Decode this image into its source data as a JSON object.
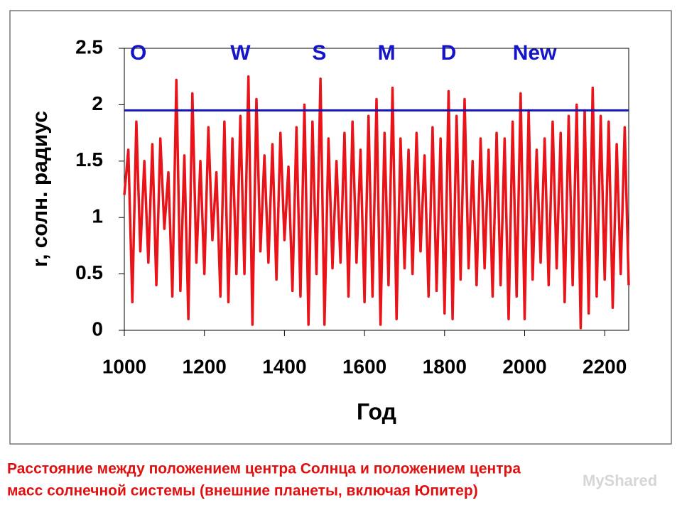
{
  "chart_data": {
    "type": "line",
    "xlabel": "Год",
    "ylabel": "r, солн. радиус",
    "xlim": [
      1000,
      2260
    ],
    "ylim": [
      0,
      2.5
    ],
    "xticks": [
      1000,
      1200,
      1400,
      1600,
      1800,
      2000,
      2200
    ],
    "yticks": [
      0,
      0.5,
      1,
      1.5,
      2,
      2.5
    ],
    "series": [
      {
        "color": "#e8141a",
        "x": [
          1000,
          1010,
          1020,
          1030,
          1040,
          1050,
          1060,
          1070,
          1080,
          1090,
          1100,
          1110,
          1120,
          1130,
          1140,
          1150,
          1160,
          1170,
          1180,
          1190,
          1200,
          1210,
          1220,
          1230,
          1240,
          1250,
          1260,
          1270,
          1280,
          1290,
          1300,
          1310,
          1320,
          1330,
          1340,
          1350,
          1360,
          1370,
          1380,
          1390,
          1400,
          1410,
          1420,
          1430,
          1440,
          1450,
          1460,
          1470,
          1480,
          1490,
          1500,
          1510,
          1520,
          1530,
          1540,
          1550,
          1560,
          1570,
          1580,
          1590,
          1600,
          1610,
          1620,
          1630,
          1640,
          1650,
          1660,
          1670,
          1680,
          1690,
          1700,
          1710,
          1720,
          1730,
          1740,
          1750,
          1760,
          1770,
          1780,
          1790,
          1800,
          1810,
          1820,
          1830,
          1840,
          1850,
          1860,
          1870,
          1880,
          1890,
          1900,
          1910,
          1920,
          1930,
          1940,
          1950,
          1960,
          1970,
          1980,
          1990,
          2000,
          2010,
          2020,
          2030,
          2040,
          2050,
          2060,
          2070,
          2080,
          2090,
          2100,
          2110,
          2120,
          2130,
          2140,
          2150,
          2160,
          2170,
          2180,
          2190,
          2200,
          2210,
          2220,
          2230,
          2240,
          2250,
          2260
        ],
        "values": [
          1.2,
          1.6,
          0.25,
          1.85,
          0.7,
          1.5,
          0.6,
          1.65,
          0.4,
          1.7,
          0.9,
          1.4,
          0.3,
          2.22,
          0.35,
          1.55,
          0.1,
          2.1,
          0.6,
          1.5,
          0.5,
          1.8,
          0.8,
          1.4,
          0.3,
          1.85,
          0.25,
          1.7,
          0.5,
          1.9,
          0.5,
          2.25,
          0.05,
          2.05,
          0.7,
          1.55,
          0.6,
          1.65,
          0.45,
          1.75,
          0.8,
          1.45,
          0.35,
          1.8,
          0.3,
          2.0,
          0.05,
          1.85,
          0.5,
          2.23,
          0.05,
          1.7,
          0.55,
          1.5,
          0.6,
          1.75,
          0.3,
          1.85,
          0.6,
          1.6,
          0.25,
          1.9,
          0.3,
          2.05,
          0.05,
          1.75,
          0.4,
          2.15,
          0.1,
          1.7,
          0.55,
          1.6,
          0.5,
          1.75,
          0.7,
          1.55,
          0.3,
          1.8,
          0.35,
          1.7,
          0.15,
          2.12,
          0.1,
          1.9,
          0.45,
          2.05,
          0.55,
          1.5,
          0.4,
          1.7,
          0.55,
          1.6,
          0.3,
          1.75,
          0.4,
          1.7,
          0.1,
          1.85,
          0.3,
          2.1,
          0.1,
          1.95,
          0.45,
          1.6,
          0.6,
          1.7,
          0.4,
          1.85,
          0.55,
          1.75,
          0.25,
          1.9,
          0.4,
          2.0,
          0.02,
          1.95,
          0.15,
          2.15,
          0.3,
          1.9,
          0.45,
          1.85,
          0.2,
          1.65,
          0.5,
          1.8,
          0.4
        ]
      }
    ],
    "reference_lines": [
      {
        "value": 1.95,
        "color": "#1414b4"
      }
    ],
    "annotations": [
      {
        "text": "O",
        "x": 1035,
        "y": 2.45
      },
      {
        "text": "W",
        "x": 1290,
        "y": 2.45
      },
      {
        "text": "S",
        "x": 1487,
        "y": 2.45
      },
      {
        "text": "M",
        "x": 1655,
        "y": 2.45
      },
      {
        "text": "D",
        "x": 1810,
        "y": 2.45
      },
      {
        "text": "New",
        "x": 2025,
        "y": 2.45
      }
    ],
    "annotation_color": "#1414c8",
    "caption": [
      "Расстояние между положением центра Солнца и положением центра",
      "масс солнечной системы (внешние планеты, включая Юпитер)"
    ],
    "watermark": "MyShared"
  }
}
